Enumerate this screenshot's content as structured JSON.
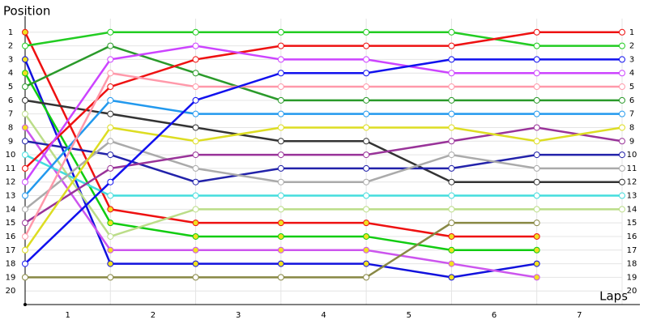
{
  "chart_data": {
    "type": "line",
    "y_label": "Position",
    "x_label": "Laps",
    "x": [
      0,
      1,
      2,
      3,
      4,
      5,
      6,
      7
    ],
    "xlim": [
      0,
      7
    ],
    "xticks": [
      {
        "value": 0.5,
        "label": "1"
      },
      {
        "value": 1.5,
        "label": "2"
      },
      {
        "value": 2.5,
        "label": "3"
      },
      {
        "value": 3.5,
        "label": "4"
      },
      {
        "value": 4.5,
        "label": "5"
      },
      {
        "value": 5.5,
        "label": "6"
      },
      {
        "value": 6.5,
        "label": "7"
      }
    ],
    "ylim": [
      0,
      21
    ],
    "y_inverted": true,
    "yticks": [
      1,
      2,
      3,
      4,
      5,
      6,
      7,
      8,
      9,
      10,
      11,
      12,
      13,
      14,
      15,
      16,
      17,
      18,
      19,
      20
    ],
    "grid": true,
    "series": [
      {
        "color": "#ee1111",
        "marker": "#f0e020",
        "values": [
          1,
          14,
          15,
          15,
          15,
          16,
          16,
          null
        ]
      },
      {
        "color": "#22cc22",
        "marker": "#ffffff",
        "values": [
          2,
          1,
          1,
          1,
          1,
          1,
          2,
          2
        ]
      },
      {
        "color": "#1111dd",
        "marker": "#f0e020",
        "values": [
          3,
          18,
          18,
          18,
          18,
          19,
          18,
          null
        ]
      },
      {
        "color": "#11cc11",
        "marker": "#f0e020",
        "values": [
          4,
          15,
          16,
          16,
          16,
          17,
          17,
          null
        ]
      },
      {
        "color": "#2a9a2a",
        "marker": "#ffffff",
        "values": [
          5,
          2,
          4,
          6,
          6,
          6,
          6,
          6
        ]
      },
      {
        "color": "#333333",
        "marker": "#ffffff",
        "values": [
          6,
          7,
          8,
          9,
          9,
          12,
          12,
          12
        ]
      },
      {
        "color": "#bbdd88",
        "marker": "#ffffff",
        "values": [
          7,
          16,
          14,
          14,
          14,
          14,
          14,
          14
        ]
      },
      {
        "color": "#cc55ee",
        "marker": "#f0e020",
        "values": [
          8,
          17,
          17,
          17,
          17,
          18,
          19,
          null
        ]
      },
      {
        "color": "#2222aa",
        "marker": "#ffffff",
        "values": [
          9,
          10,
          12,
          11,
          11,
          11,
          10,
          10
        ]
      },
      {
        "color": "#44dddd",
        "marker": "#ffffff",
        "values": [
          10,
          13,
          13,
          13,
          13,
          13,
          13,
          13
        ]
      },
      {
        "color": "#ee1111",
        "marker": "#ffffff",
        "values": [
          11,
          5,
          3,
          2,
          2,
          2,
          1,
          1
        ]
      },
      {
        "color": "#cc44ff",
        "marker": "#ffffff",
        "values": [
          12,
          3,
          2,
          3,
          3,
          4,
          4,
          4
        ]
      },
      {
        "color": "#2299ee",
        "marker": "#ffffff",
        "values": [
          13,
          6,
          7,
          7,
          7,
          7,
          7,
          7
        ]
      },
      {
        "color": "#aaaaaa",
        "marker": "#ffffff",
        "values": [
          14,
          9,
          11,
          12,
          12,
          10,
          11,
          11
        ]
      },
      {
        "color": "#993399",
        "marker": "#ffffff",
        "values": [
          15,
          11,
          10,
          10,
          10,
          9,
          8,
          9
        ]
      },
      {
        "color": "#ff99aa",
        "marker": "#ffffff",
        "values": [
          16,
          4,
          5,
          5,
          5,
          5,
          5,
          5
        ]
      },
      {
        "color": "#dddd22",
        "marker": "#ffffff",
        "values": [
          17,
          8,
          9,
          8,
          8,
          8,
          9,
          8
        ]
      },
      {
        "color": "#1111ee",
        "marker": "#ffffff",
        "values": [
          18,
          12,
          6,
          4,
          4,
          3,
          3,
          3
        ]
      },
      {
        "color": "#888844",
        "marker": "#ffffff",
        "values": [
          19,
          19,
          19,
          19,
          19,
          15,
          15,
          null
        ]
      }
    ]
  }
}
